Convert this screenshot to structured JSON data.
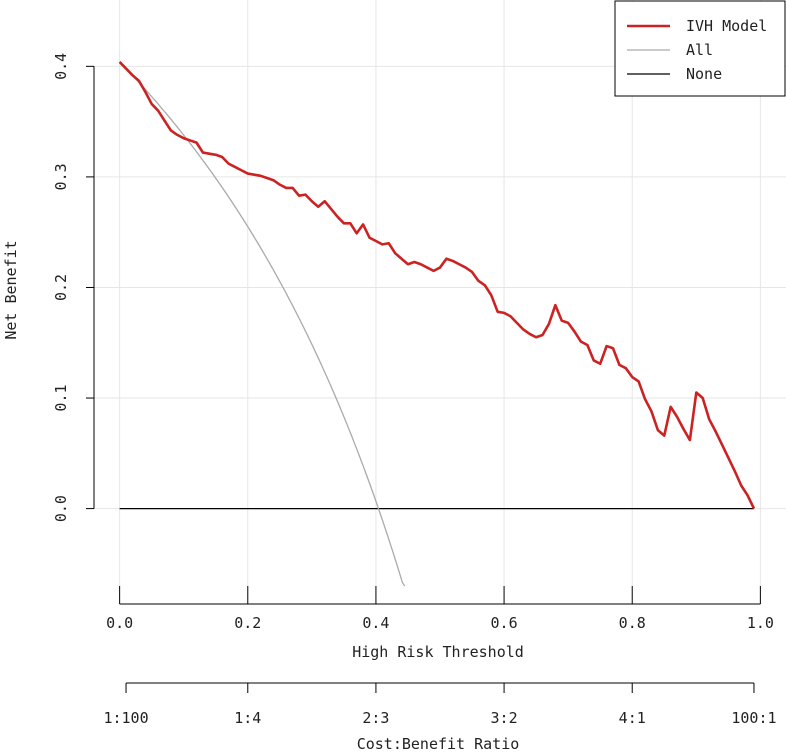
{
  "chart_data": {
    "type": "line",
    "title": "",
    "xlabel": "High Risk Threshold",
    "ylabel": "Net Benefit",
    "xlim": [
      -0.04,
      1.04
    ],
    "ylim": [
      -0.07,
      0.46
    ],
    "grid": true,
    "legend_position": "top-right",
    "x_ticks": [
      "0.0",
      "0.2",
      "0.4",
      "0.6",
      "0.8",
      "1.0"
    ],
    "y_ticks": [
      "0.0",
      "0.1",
      "0.2",
      "0.3",
      "0.4"
    ],
    "secondary_axis": {
      "label": "Cost:Benefit Ratio",
      "ticks": [
        "1:100",
        "1:4",
        "2:3",
        "3:2",
        "4:1",
        "100:1"
      ],
      "tick_positions": [
        0.01,
        0.2,
        0.4,
        0.6,
        0.8,
        0.99
      ]
    },
    "series": [
      {
        "name": "IVH Model",
        "color": "#cc2222",
        "x": [
          0.0,
          0.01,
          0.02,
          0.03,
          0.04,
          0.05,
          0.06,
          0.07,
          0.08,
          0.09,
          0.1,
          0.11,
          0.12,
          0.13,
          0.14,
          0.15,
          0.16,
          0.17,
          0.18,
          0.19,
          0.2,
          0.21,
          0.22,
          0.23,
          0.24,
          0.25,
          0.26,
          0.27,
          0.28,
          0.29,
          0.3,
          0.31,
          0.32,
          0.33,
          0.34,
          0.35,
          0.36,
          0.37,
          0.38,
          0.39,
          0.4,
          0.41,
          0.42,
          0.43,
          0.44,
          0.45,
          0.46,
          0.47,
          0.48,
          0.49,
          0.5,
          0.51,
          0.52,
          0.53,
          0.54,
          0.55,
          0.56,
          0.57,
          0.58,
          0.59,
          0.6,
          0.61,
          0.62,
          0.63,
          0.64,
          0.65,
          0.66,
          0.67,
          0.68,
          0.69,
          0.7,
          0.71,
          0.72,
          0.73,
          0.74,
          0.75,
          0.76,
          0.77,
          0.78,
          0.79,
          0.8,
          0.81,
          0.82,
          0.83,
          0.84,
          0.85,
          0.86,
          0.87,
          0.88,
          0.89,
          0.9,
          0.91,
          0.92,
          0.93,
          0.94,
          0.95,
          0.96,
          0.97,
          0.98,
          0.99
        ],
        "values": [
          0.404,
          0.398,
          0.392,
          0.387,
          0.377,
          0.366,
          0.36,
          0.351,
          0.342,
          0.338,
          0.335,
          0.333,
          0.331,
          0.322,
          0.321,
          0.32,
          0.318,
          0.312,
          0.309,
          0.306,
          0.303,
          0.302,
          0.301,
          0.299,
          0.297,
          0.293,
          0.29,
          0.29,
          0.283,
          0.284,
          0.278,
          0.273,
          0.278,
          0.271,
          0.264,
          0.258,
          0.258,
          0.249,
          0.257,
          0.245,
          0.242,
          0.239,
          0.24,
          0.231,
          0.226,
          0.221,
          0.223,
          0.221,
          0.218,
          0.215,
          0.218,
          0.226,
          0.224,
          0.221,
          0.218,
          0.214,
          0.206,
          0.202,
          0.193,
          0.178,
          0.177,
          0.174,
          0.168,
          0.162,
          0.158,
          0.155,
          0.157,
          0.167,
          0.184,
          0.17,
          0.168,
          0.16,
          0.151,
          0.148,
          0.134,
          0.131,
          0.147,
          0.145,
          0.13,
          0.127,
          0.119,
          0.115,
          0.099,
          0.088,
          0.071,
          0.066,
          0.092,
          0.083,
          0.072,
          0.062,
          0.105,
          0.1,
          0.081,
          0.07,
          0.058,
          0.046,
          0.034,
          0.021,
          0.012,
          0.0
        ]
      },
      {
        "name": "All",
        "color": "#aaaaaa",
        "prevalence": 0.404,
        "x_range": [
          0.0,
          0.445
        ]
      },
      {
        "name": "None",
        "color": "#000000",
        "x_range": [
          0.0,
          0.99
        ],
        "value": 0.0
      }
    ]
  }
}
